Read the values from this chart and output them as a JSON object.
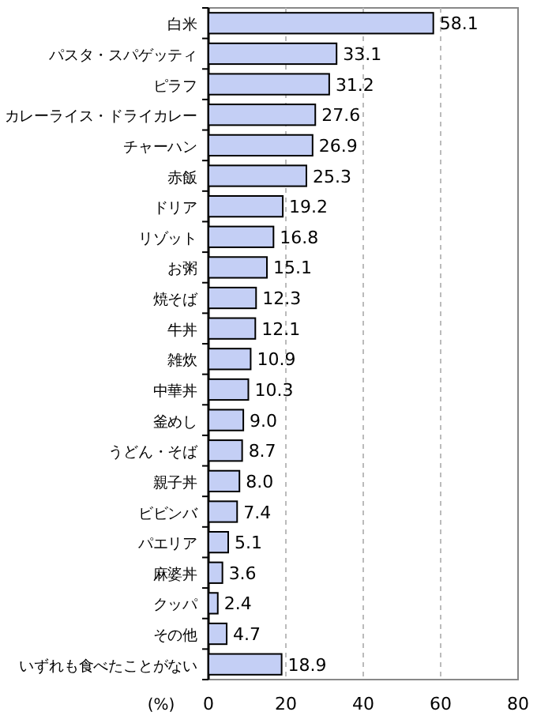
{
  "chart_data": {
    "type": "bar",
    "orientation": "horizontal",
    "xlabel": "(%)",
    "categories": [
      "白米",
      "パスタ・スパゲッティ",
      "ピラフ",
      "カレーライス・ドライカレー",
      "チャーハン",
      "赤飯",
      "ドリア",
      "リゾット",
      "お粥",
      "焼そば",
      "牛丼",
      "雑炊",
      "中華丼",
      "釜めし",
      "うどん・そば",
      "親子丼",
      "ビビンバ",
      "パエリア",
      "麻婆丼",
      "クッパ",
      "その他",
      "いずれも食べたことがない"
    ],
    "values": [
      58.1,
      33.1,
      31.2,
      27.6,
      26.9,
      25.3,
      19.2,
      16.8,
      15.1,
      12.3,
      12.1,
      10.9,
      10.3,
      9.0,
      8.7,
      8.0,
      7.4,
      5.1,
      3.6,
      2.4,
      4.7,
      18.9
    ],
    "value_labels": [
      "58.1",
      "33.1",
      "31.2",
      "27.6",
      "26.9",
      "25.3",
      "19.2",
      "16.8",
      "15.1",
      "12.3",
      "12.1",
      "10.9",
      "10.3",
      "9.0",
      "8.7",
      "8.0",
      "7.4",
      "5.1",
      "3.6",
      "2.4",
      "4.7",
      "18.9"
    ],
    "color": "#c4cff5",
    "xlim": [
      0,
      80
    ],
    "xticks": [
      0,
      20,
      40,
      60,
      80
    ],
    "grid": "x"
  }
}
